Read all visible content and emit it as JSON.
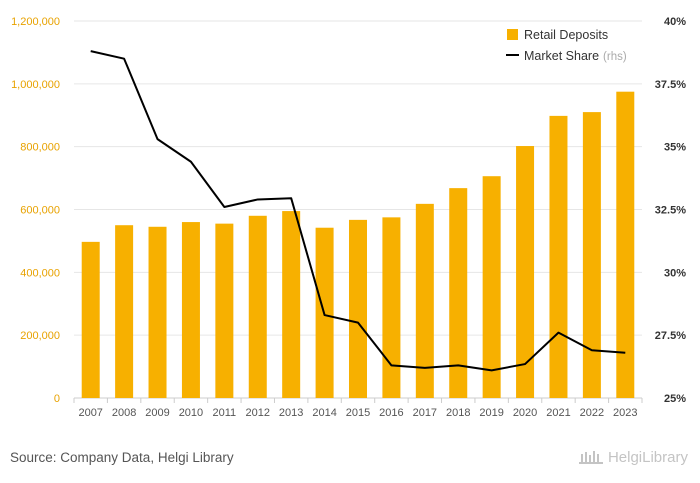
{
  "chart_data": {
    "type": "bar+line",
    "categories": [
      "2007",
      "2008",
      "2009",
      "2010",
      "2011",
      "2012",
      "2013",
      "2014",
      "2015",
      "2016",
      "2017",
      "2018",
      "2019",
      "2020",
      "2021",
      "2022",
      "2023"
    ],
    "series": [
      {
        "name": "Retail Deposits",
        "type": "bar",
        "axis": "left",
        "color": "#f7b000",
        "values": [
          497000,
          550000,
          545000,
          560000,
          555000,
          580000,
          595000,
          542000,
          567000,
          575000,
          618000,
          668000,
          706000,
          802000,
          898000,
          910000,
          975000
        ]
      },
      {
        "name": "Market Share",
        "type": "line",
        "axis": "right",
        "color": "#000000",
        "values": [
          38.8,
          38.5,
          35.3,
          34.4,
          32.6,
          32.9,
          32.95,
          28.3,
          28.0,
          26.3,
          26.2,
          26.3,
          26.1,
          26.35,
          27.6,
          26.9,
          26.8
        ]
      }
    ],
    "left_axis": {
      "min": 0,
      "max": 1200000,
      "ticks": [
        "0",
        "200,000",
        "400,000",
        "600,000",
        "800,000",
        "1,000,000",
        "1,200,000"
      ],
      "tick_values": [
        0,
        200000,
        400000,
        600000,
        800000,
        1000000,
        1200000
      ]
    },
    "right_axis": {
      "min": 25,
      "max": 40,
      "ticks": [
        "25%",
        "27.5%",
        "30%",
        "32.5%",
        "35%",
        "37.5%",
        "40%"
      ],
      "tick_values": [
        25,
        27.5,
        30,
        32.5,
        35,
        37.5,
        40
      ]
    },
    "legend": {
      "position": "top-right",
      "items": [
        {
          "label": "Retail Deposits",
          "note": ""
        },
        {
          "label": "Market Share",
          "note": "(rhs)"
        }
      ]
    },
    "grid": true
  },
  "footer": {
    "source": "Source: Company Data, Helgi Library",
    "logo_text": "HelgiLibrary"
  }
}
